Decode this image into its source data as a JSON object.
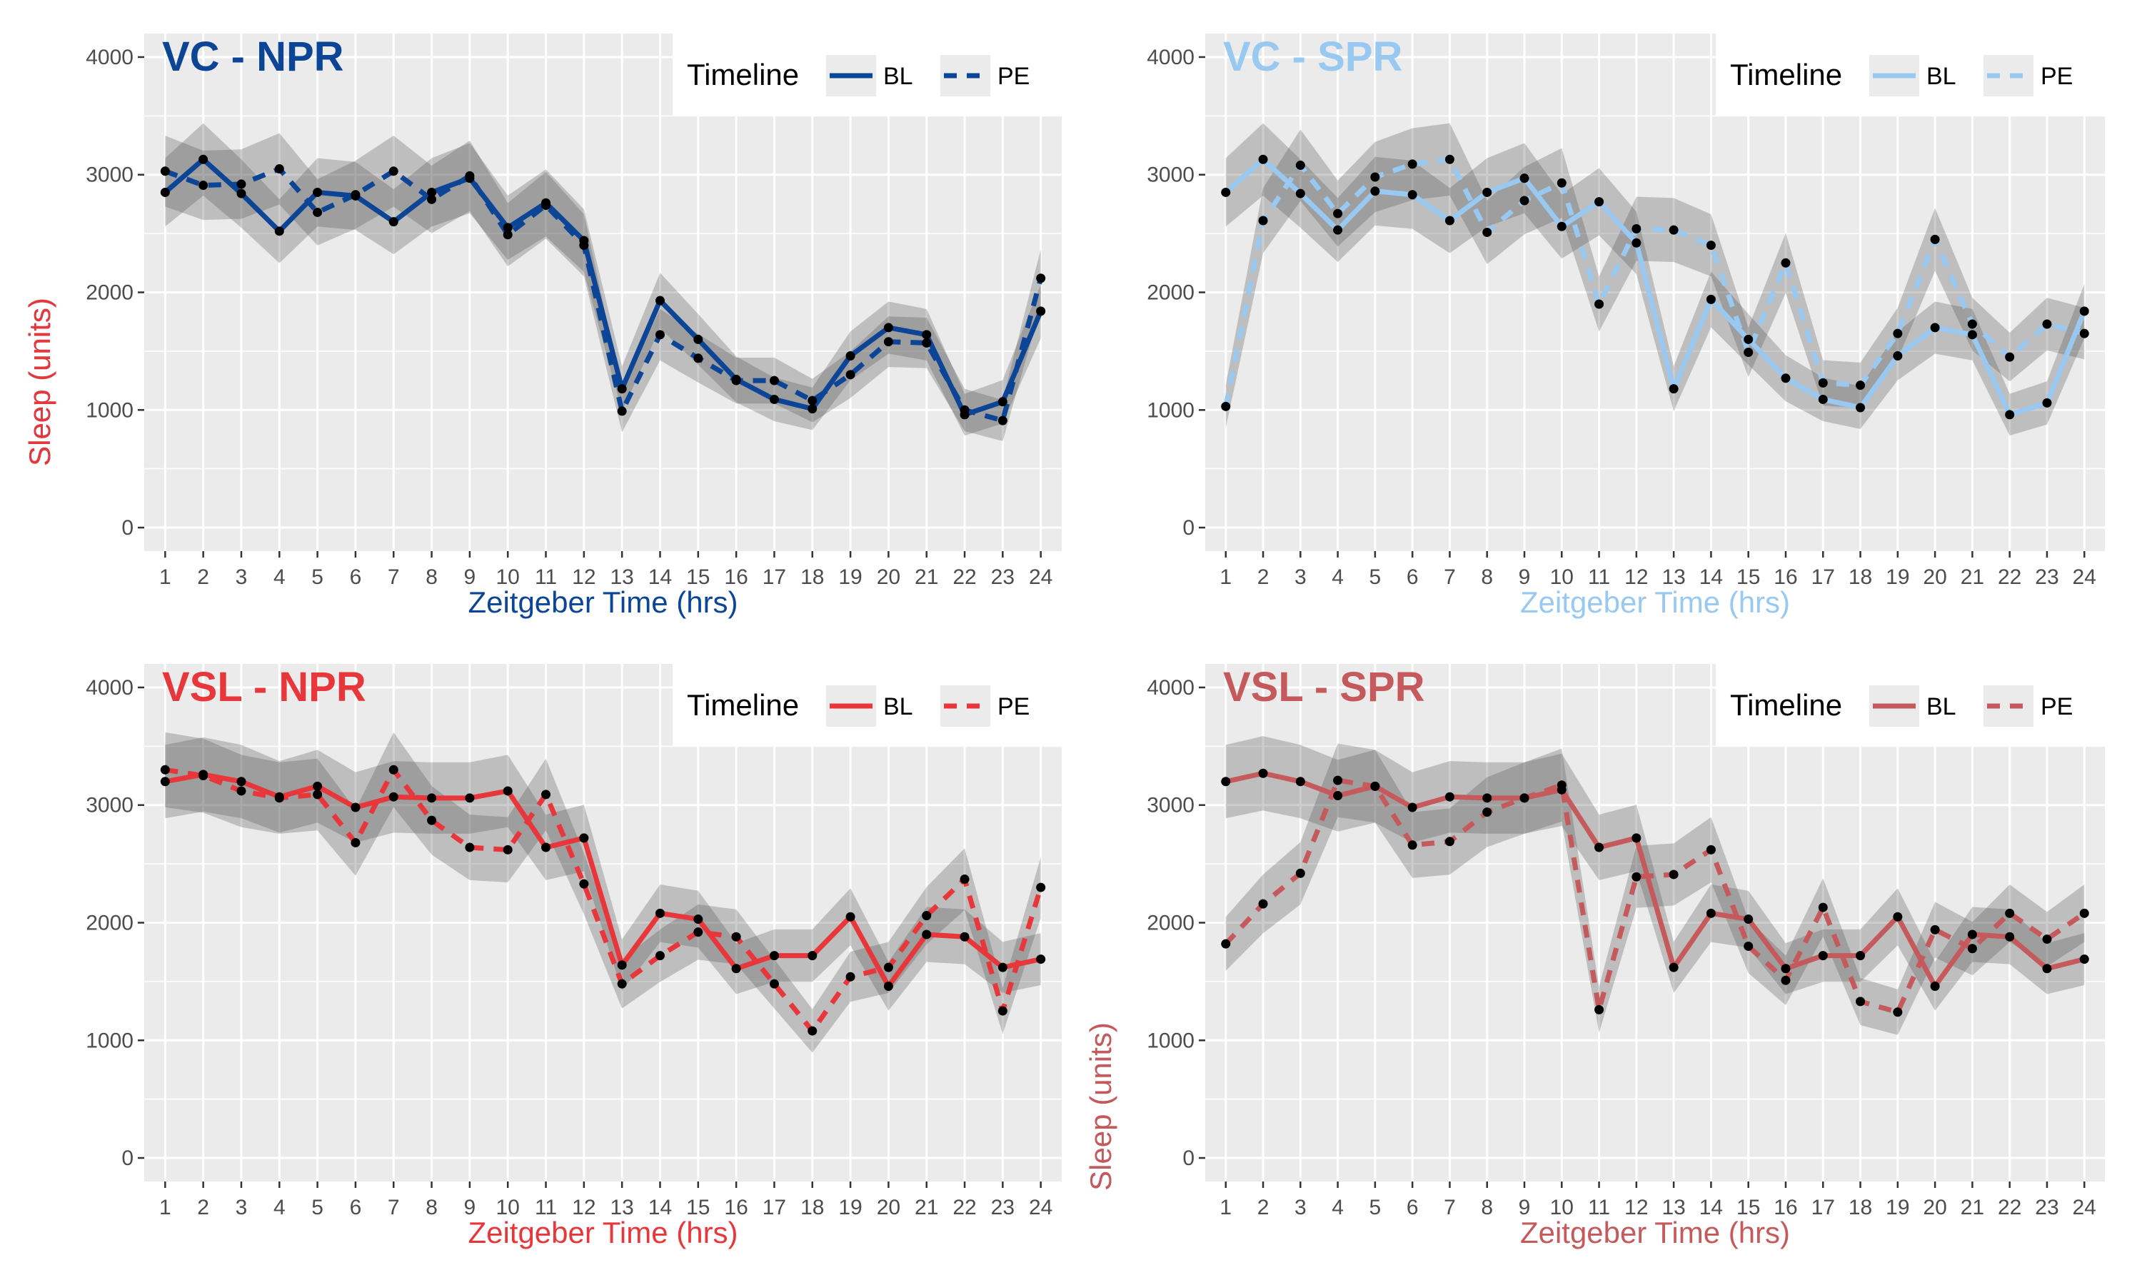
{
  "chart_data": [
    {
      "type": "line",
      "title": "VC - NPR",
      "color": "#0c4596",
      "xlabel": "Zeitgeber Time (hrs)",
      "ylabel": "Sleep (units)",
      "x": [
        1,
        2,
        3,
        4,
        5,
        6,
        7,
        8,
        9,
        10,
        11,
        12,
        13,
        14,
        15,
        16,
        17,
        18,
        19,
        20,
        21,
        22,
        23,
        24
      ],
      "ylim": [
        -200,
        4200
      ],
      "yticks": [
        0,
        1000,
        2000,
        3000,
        4000
      ],
      "grid": true,
      "legend": {
        "title": "Timeline",
        "placement": "top-right"
      },
      "series": [
        {
          "name": "BL",
          "dash": "solid",
          "values": [
            2850,
            3130,
            2840,
            2520,
            2850,
            2820,
            2600,
            2850,
            2970,
            2550,
            2760,
            2440,
            1180,
            1930,
            1600,
            1260,
            1090,
            1010,
            1460,
            1700,
            1640,
            960,
            1070,
            1840
          ]
        },
        {
          "name": "PE",
          "dash": "dashed",
          "values": [
            3030,
            2910,
            2920,
            3050,
            2680,
            2830,
            3030,
            2790,
            2990,
            2490,
            2740,
            2400,
            990,
            1640,
            1440,
            1250,
            1250,
            1080,
            1300,
            1580,
            1570,
            1000,
            910,
            2120
          ]
        }
      ]
    },
    {
      "type": "line",
      "title": "VC - SPR",
      "color": "#99c8f0",
      "xlabel": "Zeitgeber Time (hrs)",
      "ylabel": "Sleep (units)",
      "x": [
        1,
        2,
        3,
        4,
        5,
        6,
        7,
        8,
        9,
        10,
        11,
        12,
        13,
        14,
        15,
        16,
        17,
        18,
        19,
        20,
        21,
        22,
        23,
        24
      ],
      "ylim": [
        -200,
        4200
      ],
      "yticks": [
        0,
        1000,
        2000,
        3000,
        4000
      ],
      "grid": true,
      "legend": {
        "title": "Timeline",
        "placement": "top-right"
      },
      "series": [
        {
          "name": "BL",
          "dash": "solid",
          "values": [
            2850,
            3130,
            2840,
            2530,
            2860,
            2830,
            2610,
            2850,
            2970,
            2560,
            2770,
            2420,
            1180,
            1940,
            1600,
            1270,
            1090,
            1020,
            1460,
            1700,
            1640,
            960,
            1060,
            1840
          ]
        },
        {
          "name": "PE",
          "dash": "dashed",
          "values": [
            1030,
            2610,
            3080,
            2670,
            2980,
            3090,
            3130,
            2510,
            2780,
            2930,
            1900,
            2540,
            2530,
            2400,
            1490,
            2250,
            1230,
            1210,
            1650,
            2450,
            1730,
            1450,
            1730,
            1650
          ]
        }
      ]
    },
    {
      "type": "line",
      "title": "VSL - NPR",
      "color": "#e8373a",
      "xlabel": "Zeitgeber Time (hrs)",
      "ylabel": "Sleep (units)",
      "x": [
        1,
        2,
        3,
        4,
        5,
        6,
        7,
        8,
        9,
        10,
        11,
        12,
        13,
        14,
        15,
        16,
        17,
        18,
        19,
        20,
        21,
        22,
        23,
        24
      ],
      "ylim": [
        -200,
        4200
      ],
      "yticks": [
        0,
        1000,
        2000,
        3000,
        4000
      ],
      "grid": true,
      "legend": {
        "title": "Timeline",
        "placement": "top-right"
      },
      "series": [
        {
          "name": "BL",
          "dash": "solid",
          "values": [
            3200,
            3260,
            3200,
            3070,
            3160,
            2980,
            3070,
            3060,
            3060,
            3120,
            2640,
            2720,
            1640,
            2080,
            2030,
            1610,
            1720,
            1720,
            2050,
            1460,
            1900,
            1880,
            1620,
            1690
          ]
        },
        {
          "name": "PE",
          "dash": "dashed",
          "values": [
            3300,
            3250,
            3120,
            3060,
            3090,
            2680,
            3300,
            2870,
            2640,
            2620,
            3090,
            2330,
            1480,
            1720,
            1920,
            1880,
            1480,
            1080,
            1540,
            1620,
            2060,
            2370,
            1250,
            2300
          ]
        }
      ]
    },
    {
      "type": "line",
      "title": "VSL - SPR",
      "color": "#c55a5c",
      "xlabel": "Zeitgeber Time (hrs)",
      "ylabel": "Sleep (units)",
      "x": [
        1,
        2,
        3,
        4,
        5,
        6,
        7,
        8,
        9,
        10,
        11,
        12,
        13,
        14,
        15,
        16,
        17,
        18,
        19,
        20,
        21,
        22,
        23,
        24
      ],
      "ylim": [
        -200,
        4200
      ],
      "yticks": [
        0,
        1000,
        2000,
        3000,
        4000
      ],
      "grid": true,
      "legend": {
        "title": "Timeline",
        "placement": "top-right"
      },
      "series": [
        {
          "name": "BL",
          "dash": "solid",
          "values": [
            3200,
            3270,
            3200,
            3080,
            3160,
            2980,
            3070,
            3060,
            3060,
            3130,
            2640,
            2720,
            1620,
            2080,
            2030,
            1610,
            1720,
            1720,
            2050,
            1460,
            1900,
            1880,
            1610,
            1690
          ]
        },
        {
          "name": "PE",
          "dash": "dashed",
          "values": [
            1820,
            2160,
            2420,
            3210,
            3160,
            2660,
            2690,
            2940,
            3060,
            3170,
            1260,
            2390,
            2410,
            2620,
            1800,
            1510,
            2130,
            1330,
            1240,
            1940,
            1780,
            2080,
            1860,
            2080
          ]
        }
      ]
    }
  ]
}
